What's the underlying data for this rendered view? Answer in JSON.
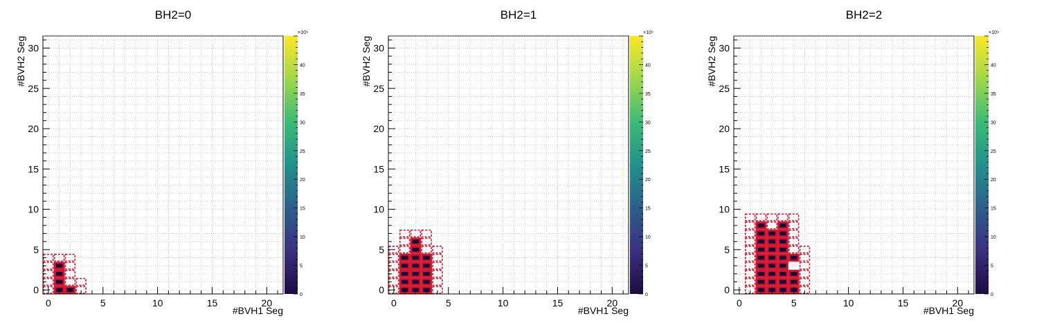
{
  "chart_data": [
    {
      "type": "heatmap",
      "title": "BH2=0",
      "xlabel": "#BVH1 Seg",
      "ylabel": "#BVH2 Seg",
      "xlim": [
        -0.5,
        21.5
      ],
      "ylim": [
        -0.5,
        31.5
      ],
      "xticks": [
        0,
        5,
        10,
        15,
        20
      ],
      "yticks": [
        0,
        5,
        10,
        15,
        20,
        25,
        30
      ],
      "grid": true,
      "colorbar": {
        "label": "×10⁹",
        "range": [
          0,
          45
        ],
        "ticks": [
          0,
          5,
          10,
          15,
          20,
          25,
          30,
          35,
          40
        ],
        "palette": [
          "#1b0c41",
          "#3b2f80",
          "#2c5f8a",
          "#21918c",
          "#3bbb75",
          "#9fd84a",
          "#fde725"
        ]
      },
      "filled_cells": [
        [
          1,
          0
        ],
        [
          1,
          1
        ],
        [
          1,
          2
        ],
        [
          1,
          3
        ],
        [
          2,
          0
        ]
      ],
      "dashed_cells": [
        [
          0,
          0
        ],
        [
          0,
          1
        ],
        [
          0,
          2
        ],
        [
          0,
          3
        ],
        [
          0,
          4
        ],
        [
          1,
          4
        ],
        [
          2,
          1
        ],
        [
          2,
          2
        ],
        [
          2,
          3
        ],
        [
          2,
          4
        ],
        [
          3,
          0
        ],
        [
          3,
          1
        ]
      ]
    },
    {
      "type": "heatmap",
      "title": "BH2=1",
      "xlabel": "#BVH1 Seg",
      "ylabel": "#BVH2 Seg",
      "xlim": [
        -0.5,
        21.5
      ],
      "ylim": [
        -0.5,
        31.5
      ],
      "xticks": [
        0,
        5,
        10,
        15,
        20
      ],
      "yticks": [
        0,
        5,
        10,
        15,
        20,
        25,
        30
      ],
      "grid": true,
      "colorbar": {
        "label": "×10⁹",
        "range": [
          0,
          45
        ],
        "ticks": [
          0,
          5,
          10,
          15,
          20,
          25,
          30,
          35,
          40
        ],
        "palette": [
          "#1b0c41",
          "#3b2f80",
          "#2c5f8a",
          "#21918c",
          "#3bbb75",
          "#9fd84a",
          "#fde725"
        ]
      },
      "filled_cells": [
        [
          1,
          0
        ],
        [
          1,
          1
        ],
        [
          1,
          2
        ],
        [
          1,
          3
        ],
        [
          1,
          4
        ],
        [
          2,
          0
        ],
        [
          2,
          1
        ],
        [
          2,
          2
        ],
        [
          2,
          3
        ],
        [
          2,
          4
        ],
        [
          2,
          5
        ],
        [
          2,
          6
        ],
        [
          3,
          0
        ],
        [
          3,
          1
        ],
        [
          3,
          2
        ],
        [
          3,
          3
        ],
        [
          3,
          4
        ]
      ],
      "dashed_cells": [
        [
          0,
          0
        ],
        [
          0,
          1
        ],
        [
          0,
          2
        ],
        [
          0,
          3
        ],
        [
          0,
          4
        ],
        [
          0,
          5
        ],
        [
          1,
          5
        ],
        [
          1,
          6
        ],
        [
          1,
          7
        ],
        [
          2,
          7
        ],
        [
          3,
          5
        ],
        [
          3,
          6
        ],
        [
          3,
          7
        ],
        [
          4,
          0
        ],
        [
          4,
          1
        ],
        [
          4,
          2
        ],
        [
          4,
          3
        ],
        [
          4,
          4
        ],
        [
          4,
          5
        ]
      ]
    },
    {
      "type": "heatmap",
      "title": "BH2=2",
      "xlabel": "#BVH1 Seg",
      "ylabel": "#BVH2 Seg",
      "xlim": [
        -0.5,
        21.5
      ],
      "ylim": [
        -0.5,
        31.5
      ],
      "xticks": [
        0,
        5,
        10,
        15,
        20
      ],
      "yticks": [
        0,
        5,
        10,
        15,
        20,
        25,
        30
      ],
      "grid": true,
      "colorbar": {
        "label": "×10⁹",
        "range": [
          0,
          45
        ],
        "ticks": [
          0,
          5,
          10,
          15,
          20,
          25,
          30,
          35,
          40
        ],
        "palette": [
          "#1b0c41",
          "#3b2f80",
          "#2c5f8a",
          "#21918c",
          "#3bbb75",
          "#9fd84a",
          "#fde725"
        ]
      },
      "filled_cells": [
        [
          2,
          0
        ],
        [
          2,
          1
        ],
        [
          2,
          2
        ],
        [
          2,
          3
        ],
        [
          2,
          4
        ],
        [
          2,
          5
        ],
        [
          2,
          6
        ],
        [
          2,
          7
        ],
        [
          2,
          8
        ],
        [
          3,
          0
        ],
        [
          3,
          1
        ],
        [
          3,
          2
        ],
        [
          3,
          3
        ],
        [
          3,
          4
        ],
        [
          3,
          5
        ],
        [
          3,
          6
        ],
        [
          3,
          7
        ],
        [
          4,
          0
        ],
        [
          4,
          1
        ],
        [
          4,
          2
        ],
        [
          4,
          3
        ],
        [
          4,
          4
        ],
        [
          4,
          5
        ],
        [
          4,
          6
        ],
        [
          4,
          7
        ],
        [
          4,
          8
        ],
        [
          5,
          0
        ],
        [
          5,
          1
        ],
        [
          5,
          2
        ],
        [
          5,
          4
        ]
      ],
      "dashed_cells": [
        [
          1,
          0
        ],
        [
          1,
          1
        ],
        [
          1,
          2
        ],
        [
          1,
          3
        ],
        [
          1,
          4
        ],
        [
          1,
          5
        ],
        [
          1,
          6
        ],
        [
          1,
          7
        ],
        [
          1,
          8
        ],
        [
          1,
          9
        ],
        [
          2,
          9
        ],
        [
          3,
          8
        ],
        [
          3,
          9
        ],
        [
          4,
          9
        ],
        [
          5,
          5
        ],
        [
          5,
          6
        ],
        [
          5,
          7
        ],
        [
          5,
          8
        ],
        [
          5,
          9
        ],
        [
          6,
          0
        ],
        [
          6,
          1
        ],
        [
          6,
          2
        ],
        [
          6,
          3
        ],
        [
          6,
          4
        ],
        [
          6,
          5
        ]
      ]
    }
  ]
}
